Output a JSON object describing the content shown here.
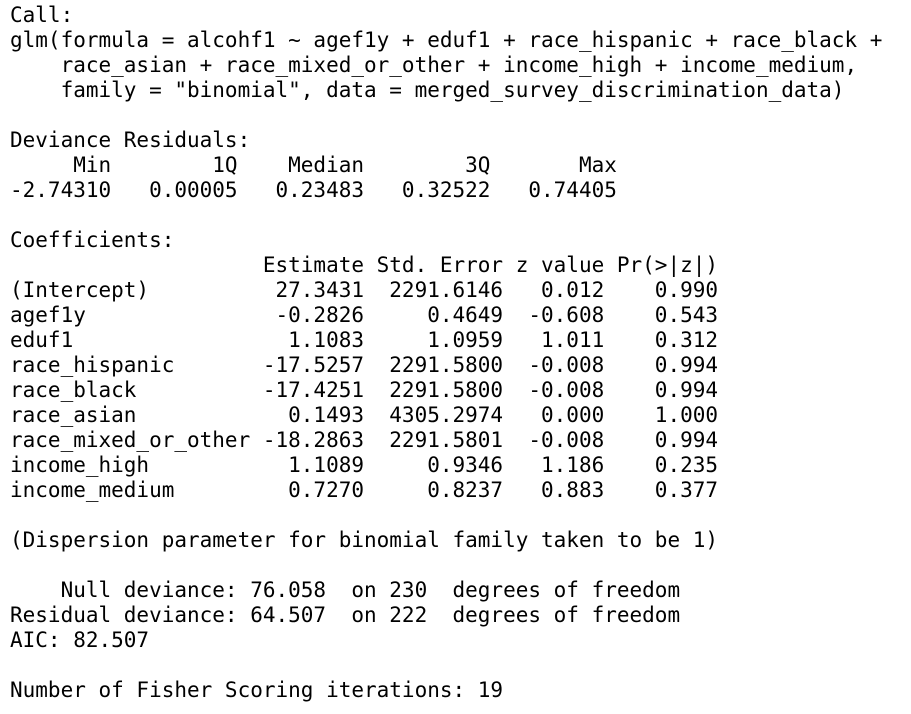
{
  "output": {
    "call_header": "Call:",
    "call_lines": [
      "glm(formula = alcohf1 ~ agef1y + eduf1 + race_hispanic + race_black +",
      "    race_asian + race_mixed_or_other + income_high + income_medium,",
      "    family = \"binomial\", data = merged_survey_discrimination_data)"
    ],
    "deviance_residuals": {
      "header": "Deviance Residuals:",
      "columns_line": "     Min        1Q    Median        3Q       Max  ",
      "values_line": "-2.74310   0.00005   0.23483   0.32522   0.74405  "
    },
    "coefficients": {
      "header": "Coefficients:",
      "column_header_line": "                    Estimate Std. Error z value Pr(>|z|)",
      "rows": [
        {
          "term": "(Intercept)",
          "line": "(Intercept)          27.3431  2291.6146   0.012    0.990"
        },
        {
          "term": "agef1y",
          "line": "agef1y               -0.2826     0.4649  -0.608    0.543"
        },
        {
          "term": "eduf1",
          "line": "eduf1                 1.1083     1.0959   1.011    0.312"
        },
        {
          "term": "race_hispanic",
          "line": "race_hispanic       -17.5257  2291.5800  -0.008    0.994"
        },
        {
          "term": "race_black",
          "line": "race_black          -17.4251  2291.5800  -0.008    0.994"
        },
        {
          "term": "race_asian",
          "line": "race_asian            0.1493  4305.2974   0.000    1.000"
        },
        {
          "term": "race_mixed_or_other",
          "line": "race_mixed_or_other -18.2863  2291.5801  -0.008    0.994"
        },
        {
          "term": "income_high",
          "line": "income_high           1.1089     0.9346   1.186    0.235"
        },
        {
          "term": "income_medium",
          "line": "income_medium         0.7270     0.8237   0.883    0.377"
        }
      ]
    },
    "dispersion_line": "(Dispersion parameter for binomial family taken to be 1)",
    "null_deviance_line": "    Null deviance: 76.058  on 230  degrees of freedom",
    "residual_deviance_line": "Residual deviance: 64.507  on 222  degrees of freedom",
    "aic_line": "AIC: 82.507",
    "fisher_line": "Number of Fisher Scoring iterations: 19"
  }
}
